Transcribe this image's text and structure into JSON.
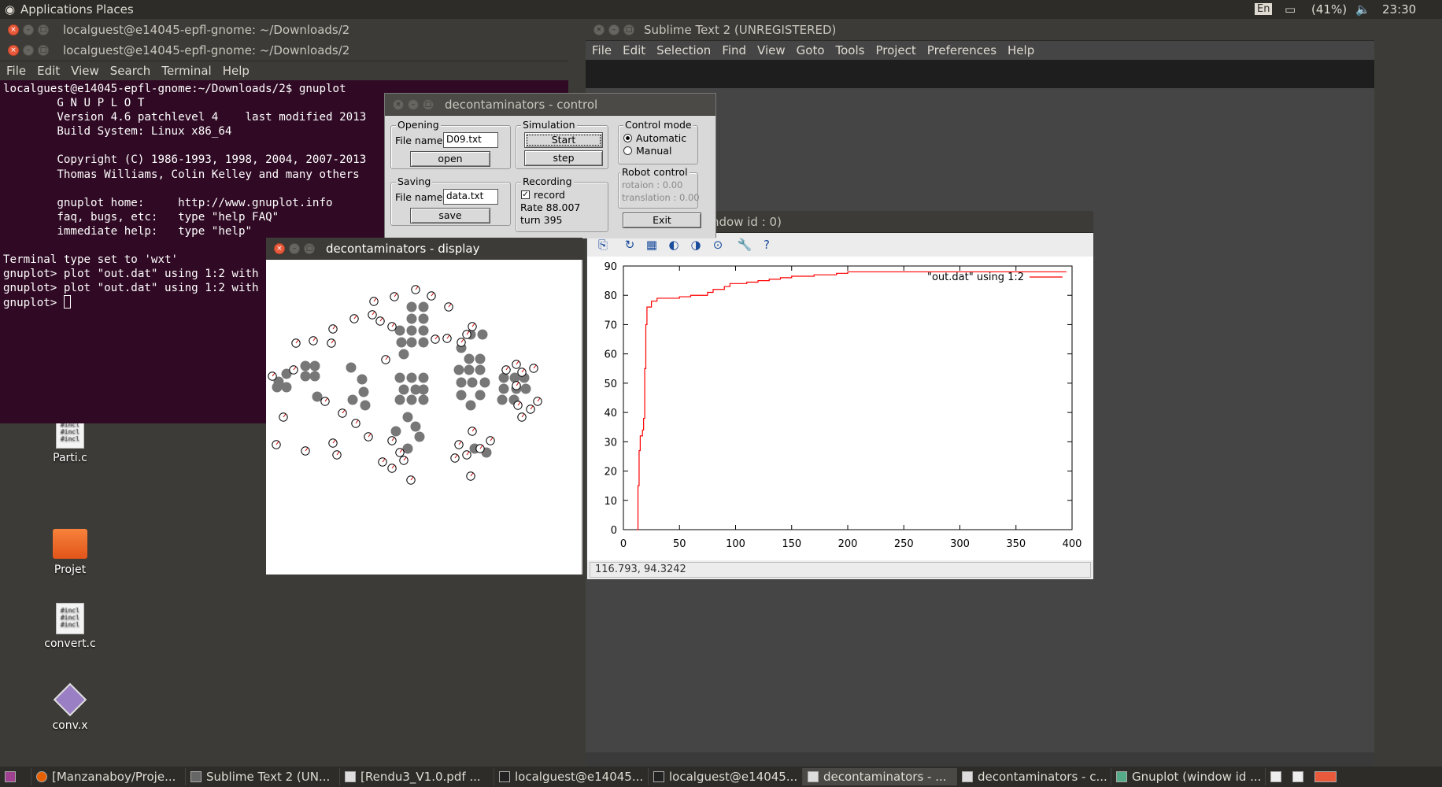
{
  "topbar": {
    "applications": "Applications",
    "places": "Places",
    "lang": "En",
    "battery": "(41%)",
    "time": "23:30"
  },
  "terminal_back": {
    "title": "localguest@e14045-epfl-gnome: ~/Downloads/2"
  },
  "terminal": {
    "title": "localguest@e14045-epfl-gnome: ~/Downloads/2",
    "menu": [
      "File",
      "Edit",
      "View",
      "Search",
      "Terminal",
      "Help"
    ],
    "lines": [
      "localguest@e14045-epfl-gnome:~/Downloads/2$ gnuplot",
      "",
      "        G N U P L O T",
      "        Version 4.6 patchlevel 4    last modified 2013",
      "        Build System: Linux x86_64",
      "",
      "        Copyright (C) 1986-1993, 1998, 2004, 2007-2013",
      "        Thomas Williams, Colin Kelley and many others",
      "",
      "        gnuplot home:     http://www.gnuplot.info",
      "        faq, bugs, etc:   type \"help FAQ\"",
      "        immediate help:   type \"help\"",
      "",
      "Terminal type set to 'wxt'",
      "gnuplot> plot \"out.dat\" using 1:2 with",
      "gnuplot> plot \"out.dat\" using 1:2 with",
      "gnuplot> "
    ]
  },
  "sublime": {
    "title": "Sublime Text 2 (UNREGISTERED)",
    "menu": [
      "File",
      "Edit",
      "Selection",
      "Find",
      "View",
      "Goto",
      "Tools",
      "Project",
      "Preferences",
      "Help"
    ]
  },
  "control": {
    "title": "decontaminators - control",
    "opening": {
      "legend": "Opening",
      "file_label": "File name:",
      "file_value": "D09.txt",
      "button": "open"
    },
    "saving": {
      "legend": "Saving",
      "file_label": "File name:",
      "file_value": "data.txt",
      "button": "save"
    },
    "simulation": {
      "legend": "Simulation",
      "start": "Start",
      "step": "step"
    },
    "recording": {
      "legend": "Recording",
      "checkbox": "record",
      "rate": "Rate 88.007",
      "turn": "turn 395"
    },
    "control_mode": {
      "legend": "Control mode",
      "automatic": "Automatic",
      "manual": "Manual"
    },
    "robot_control": {
      "legend": "Robot control",
      "rotation": "rotaion : 0.00",
      "translation": "translation : 0.00"
    },
    "exit": "Exit"
  },
  "display": {
    "title": "decontaminators - display"
  },
  "gnuplot": {
    "title_fragment": "ndow id : 0)",
    "status": "116.793,  94.3242"
  },
  "chart_data": {
    "type": "line",
    "legend": "\"out.dat\" using 1:2",
    "legend_position": "top-right",
    "xlim": [
      0,
      400
    ],
    "ylim": [
      0,
      90
    ],
    "xticks": [
      0,
      50,
      100,
      150,
      200,
      250,
      300,
      350,
      400
    ],
    "yticks": [
      0,
      10,
      20,
      30,
      40,
      50,
      60,
      70,
      80,
      90
    ],
    "color": "#ff0000",
    "x": [
      12,
      13,
      14,
      15,
      17,
      18,
      19,
      20,
      21,
      22,
      25,
      30,
      40,
      50,
      60,
      70,
      75,
      80,
      90,
      95,
      100,
      110,
      120,
      130,
      140,
      150,
      170,
      190,
      200,
      250,
      300,
      350,
      395
    ],
    "y": [
      0,
      15,
      27,
      32,
      34,
      38,
      55,
      70,
      76,
      76,
      78,
      79,
      79,
      79.5,
      80,
      80,
      81,
      82,
      83,
      84,
      84,
      84.5,
      85,
      85.5,
      86,
      86.5,
      87,
      87.5,
      88,
      88,
      88,
      88,
      88
    ]
  },
  "desktop": [
    {
      "label": "Parti.c"
    },
    {
      "label": "Projet"
    },
    {
      "label": "convert.c"
    },
    {
      "label": "conv.x"
    }
  ],
  "taskbar": [
    "[Manzanaboy/Proje...",
    "Sublime Text 2 (UN...",
    "[Rendu3_V1.0.pdf ...",
    "localguest@e14045...",
    "localguest@e14045...",
    "decontaminators - ...",
    "decontaminators - c...",
    "Gnuplot (window id ..."
  ]
}
